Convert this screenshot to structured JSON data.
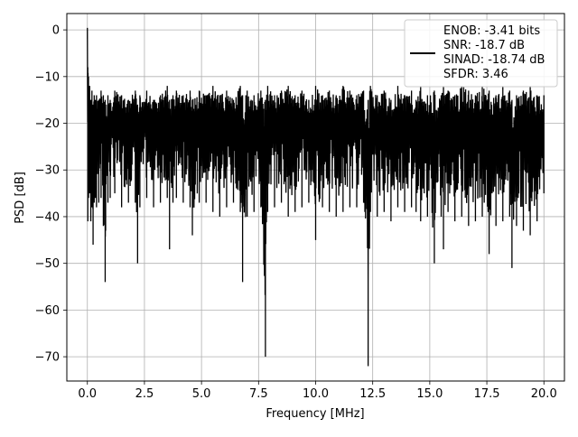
{
  "chart_data": {
    "type": "line",
    "xlabel": "Frequency [MHz]",
    "ylabel": "PSD [dB]",
    "xlim": [
      -0.9,
      20.9
    ],
    "ylim": [
      -75.2,
      3.5
    ],
    "xticks": [
      0.0,
      2.5,
      5.0,
      7.5,
      10.0,
      12.5,
      15.0,
      17.5,
      20.0
    ],
    "xtick_labels": [
      "0.0",
      "2.5",
      "5.0",
      "7.5",
      "10.0",
      "12.5",
      "15.0",
      "17.5",
      "20.0"
    ],
    "yticks": [
      0,
      -10,
      -20,
      -30,
      -40,
      -50,
      -60,
      -70
    ],
    "ytick_labels": [
      "0",
      "−10",
      "−20",
      "−30",
      "−40",
      "−50",
      "−60",
      "−70"
    ],
    "grid": true,
    "legend_position": "top-right",
    "legend_lines": [
      "ENOB: -3.41 bits",
      "SNR: -18.7 dB",
      "SINAD: -18.74 dB",
      "SFDR: 3.46"
    ],
    "series": [
      {
        "color": "#000000",
        "x": [
          0.0,
          0.02,
          0.05,
          0.08,
          0.1,
          0.15,
          0.2,
          0.25,
          0.3,
          0.35,
          0.4,
          0.5,
          0.6,
          0.7,
          0.78,
          0.8,
          0.9,
          1.0,
          1.2,
          1.5,
          1.8,
          2.1,
          2.2,
          2.3,
          2.6,
          2.9,
          3.2,
          3.5,
          3.6,
          3.75,
          3.9,
          4.2,
          4.5,
          4.6,
          4.9,
          5.2,
          5.5,
          5.8,
          6.1,
          6.4,
          6.7,
          6.8,
          7.0,
          7.3,
          7.6,
          7.8,
          7.9,
          8.2,
          8.5,
          8.8,
          9.1,
          9.4,
          9.7,
          10.0,
          10.3,
          10.6,
          10.9,
          11.2,
          11.5,
          11.8,
          12.1,
          12.3,
          12.4,
          12.7,
          13.0,
          13.3,
          13.6,
          13.9,
          14.2,
          14.4,
          14.6,
          14.9,
          15.2,
          15.5,
          15.6,
          15.8,
          16.1,
          16.4,
          16.7,
          17.0,
          17.3,
          17.6,
          17.9,
          18.2,
          18.5,
          18.6,
          18.8,
          19.1,
          19.4,
          19.7,
          20.0
        ],
        "upper": [
          0,
          -8,
          -10,
          -14,
          -12,
          -15,
          -13,
          -16,
          -14,
          -15,
          -14,
          -15,
          -13,
          -14,
          -15,
          -16,
          -14,
          -15,
          -13,
          -14,
          -15,
          -13,
          -16,
          -14,
          -13,
          -15,
          -14,
          -12,
          -15,
          -14,
          -13,
          -14,
          -13,
          -15,
          -13,
          -14,
          -12,
          -14,
          -13,
          -15,
          -12,
          -14,
          -13,
          -14,
          -13,
          -15,
          -12,
          -14,
          -13,
          -12,
          -14,
          -13,
          -15,
          -12,
          -14,
          -13,
          -14,
          -12,
          -13,
          -14,
          -13,
          -15,
          -12,
          -14,
          -13,
          -15,
          -12,
          -14,
          -13,
          -15,
          -12,
          -14,
          -13,
          -14,
          -12,
          -13,
          -14,
          -12,
          -13,
          -14,
          -12,
          -13,
          -14,
          -12,
          -13,
          -15,
          -14,
          -13,
          -12,
          -14,
          -14
        ],
        "lower": [
          -2,
          -41,
          -36,
          -34,
          -35,
          -41,
          -38,
          -46,
          -37,
          -36,
          -38,
          -37,
          -36,
          -42,
          -54,
          -43,
          -37,
          -36,
          -35,
          -38,
          -37,
          -37,
          -50,
          -38,
          -36,
          -38,
          -37,
          -36,
          -47,
          -37,
          -36,
          -37,
          -38,
          -44,
          -37,
          -37,
          -39,
          -40,
          -38,
          -37,
          -39,
          -54,
          -40,
          -39,
          -38,
          -70,
          -39,
          -38,
          -37,
          -40,
          -39,
          -38,
          -37,
          -45,
          -38,
          -39,
          -40,
          -39,
          -38,
          -38,
          -37,
          -72,
          -39,
          -40,
          -39,
          -41,
          -38,
          -39,
          -38,
          -39,
          -41,
          -40,
          -50,
          -40,
          -47,
          -39,
          -41,
          -40,
          -42,
          -41,
          -40,
          -48,
          -42,
          -41,
          -40,
          -51,
          -42,
          -43,
          -44,
          -41,
          -35
        ]
      }
    ]
  }
}
